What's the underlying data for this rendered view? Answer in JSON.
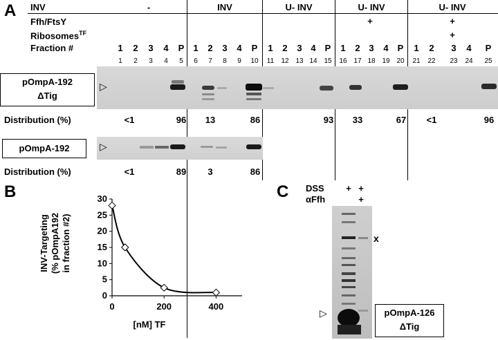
{
  "panels": {
    "a": "A",
    "b": "B",
    "c": "C"
  },
  "panelA": {
    "row_labels": {
      "inv": "INV",
      "ffh": "Ffh/FtsY",
      "ribosomes": "Ribosomes",
      "ribosomes_sup": "TF",
      "fraction": "Fraction #"
    },
    "conditions": [
      "-",
      "INV",
      "U- INV",
      "U- INV",
      "U- INV"
    ],
    "ffh_marks": [
      "",
      "",
      "",
      "+",
      "+"
    ],
    "ribosome_marks": [
      "",
      "",
      "",
      "",
      "+"
    ],
    "fractions": [
      "1",
      "2",
      "3",
      "4",
      "P"
    ],
    "lane_numbers": [
      "1",
      "2",
      "3",
      "4",
      "5",
      "6",
      "7",
      "8",
      "9",
      "10",
      "11",
      "12",
      "13",
      "14",
      "15",
      "16",
      "17",
      "18",
      "19",
      "20",
      "21",
      "22",
      "23",
      "24",
      "25"
    ],
    "blot1": {
      "label_line1": "pOmpA-192",
      "label_line2": "ΔTig",
      "distribution_label": "Distribution (%)",
      "distribution": [
        {
          "fraction2": "<1",
          "pellet": "96"
        },
        {
          "fraction2": "13",
          "pellet": "86"
        },
        {
          "fraction2": "",
          "pellet": "93"
        },
        {
          "fraction2": "33",
          "pellet": "67"
        },
        {
          "fraction2": "<1",
          "pellet": "96"
        }
      ]
    },
    "blot2": {
      "label": "pOmpA-192",
      "distribution_label": "Distribution (%)",
      "distribution": [
        {
          "fraction2": "<1",
          "pellet": "89"
        },
        {
          "fraction2": "3",
          "pellet": "86"
        }
      ]
    }
  },
  "panelB": {
    "ylabel_lines": [
      "INV-Targeting",
      "(% pOmpA192",
      "in fraction #2)"
    ],
    "xlabel": "[nM] TF",
    "chart_data": {
      "type": "line",
      "x": [
        0,
        50,
        200,
        400
      ],
      "y": [
        28,
        15,
        2.5,
        1
      ],
      "xlim": [
        0,
        500
      ],
      "ylim": [
        0,
        30
      ],
      "xticks": [
        "0",
        "200",
        "400"
      ],
      "yticks": [
        "0",
        "5",
        "10",
        "15",
        "20",
        "25",
        "30"
      ],
      "xlabel": "[nM] TF",
      "ylabel": "INV-Targeting (% pOmpA192 in fraction #2)",
      "marker": "diamond",
      "grid": false
    }
  },
  "panelC": {
    "dss_label": "DSS",
    "affh_label": "αFfh",
    "lane1_marks": [
      "+",
      ""
    ],
    "lane2_marks": [
      "+",
      "+"
    ],
    "crosslink_label": "x",
    "protein_line1": "pOmpA-126",
    "protein_line2": "ΔTig"
  }
}
